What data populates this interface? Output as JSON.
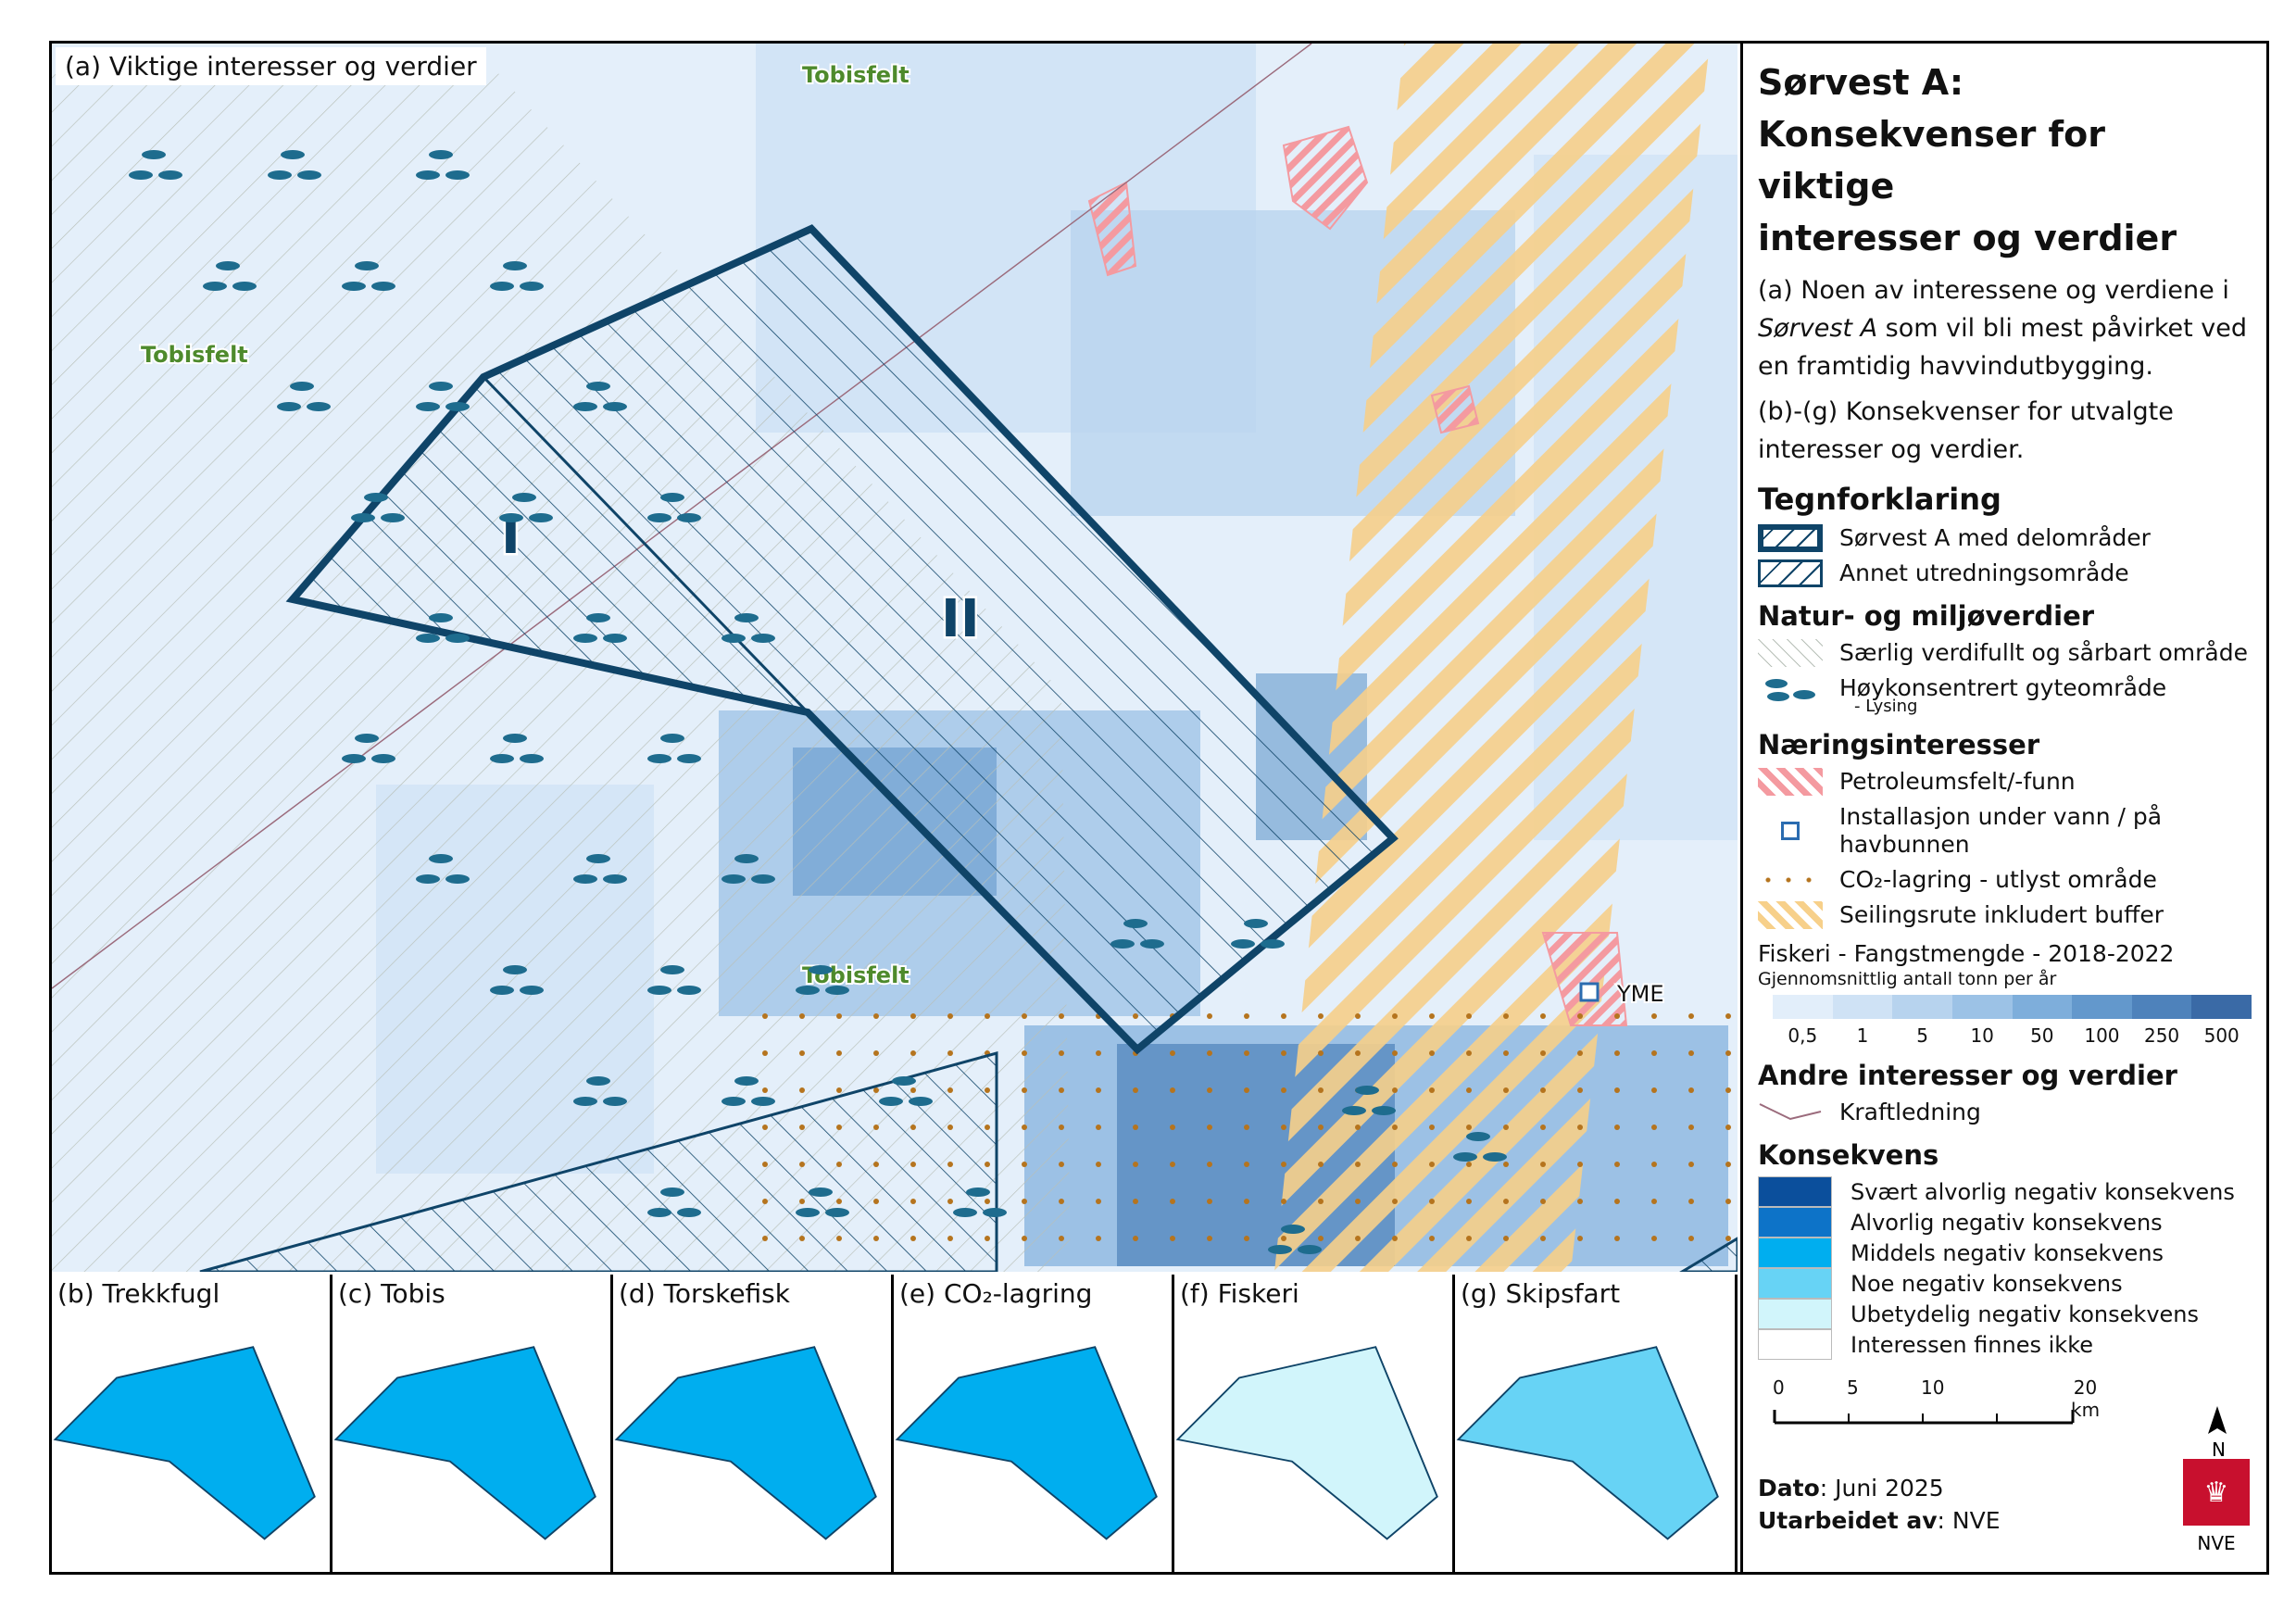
{
  "main_map": {
    "label": "(a) Viktige interesser og verdier",
    "place_labels": [
      "Tobisfelt",
      "Tobisfelt",
      "Tobisfelt"
    ],
    "area_labels": [
      "I",
      "II"
    ],
    "installation_label": "YME"
  },
  "legend": {
    "title_line1": "Sørvest A:",
    "title_line2": "Konsekvenser for viktige",
    "title_line3": "interesser og verdier",
    "desc1_pre": "(a) Noen av interessene og verdiene i",
    "desc1_italic": "Sørvest A",
    "desc1_post": "som vil bli mest påvirket ved en framtidig havvindutbygging.",
    "desc2": "(b)-(g) Konsekvenser for utvalgte interesser og verdier.",
    "tegnforklaring": "Tegnforklaring",
    "area_items": [
      "Sørvest A med delområder",
      "Annet utredningsområde"
    ],
    "natur_heading": "Natur- og miljøverdier",
    "natur_items": [
      "Særlig verdifullt og sårbart område",
      "Høykonsentrert gyteområde"
    ],
    "natur_sub": "- Lysing",
    "naering_heading": "Næringsinteresser",
    "naering_items": [
      "Petroleumsfelt/-funn",
      "Installasjon under vann / på havbunnen",
      "CO₂-lagring - utlyst område",
      "Seilingsrute inkludert buffer"
    ],
    "fiskeri_title": "Fiskeri - Fangstmengde - 2018-2022",
    "fiskeri_sub": "Gjennomsnittlig antall tonn per år",
    "fiskeri_ticks": [
      "0,5",
      "1",
      "5",
      "10",
      "50",
      "100",
      "250",
      "500"
    ],
    "fiskeri_colors": [
      "#e2eefa",
      "#cfe2f5",
      "#b7d3ee",
      "#9cc2e6",
      "#7eaedb",
      "#6398cc",
      "#4e82bb",
      "#3a6aa6"
    ],
    "andre_heading": "Andre interesser og verdier",
    "andre_items": [
      "Kraftledning"
    ],
    "konsekvens_heading": "Konsekvens",
    "konsekvens_items": [
      "Svært alvorlig negativ konsekvens",
      "Alvorlig negativ konsekvens",
      "Middels negativ konsekvens",
      "Noe negativ konsekvens",
      "Ubetydelig negativ konsekvens",
      "Interessen finnes ikke"
    ],
    "konsekvens_colors": [
      "#0b4f9c",
      "#0d73c8",
      "#00aeef",
      "#67d3f5",
      "#d1f5fb",
      "#ffffff"
    ],
    "scale_labels": [
      "0",
      "5",
      "10",
      "20 km"
    ],
    "north": "N",
    "dato_label": "Dato",
    "dato_value": ": Juni 2025",
    "utarbeidet_label": "Utarbeidet av",
    "utarbeidet_value": ": NVE",
    "logo_text": "NVE"
  },
  "panels": [
    {
      "label": "(b) Trekkfugl",
      "fill": "#00aeef"
    },
    {
      "label": "(c) Tobis",
      "fill": "#00aeef"
    },
    {
      "label": "(d) Torskefisk",
      "fill": "#00aeef"
    },
    {
      "label": "(e) CO₂-lagring",
      "fill": "#00aeef"
    },
    {
      "label": "(f) Fiskeri",
      "fill": "#d1f5fb"
    },
    {
      "label": "(g) Skipsfart",
      "fill": "#67d3f5"
    }
  ]
}
